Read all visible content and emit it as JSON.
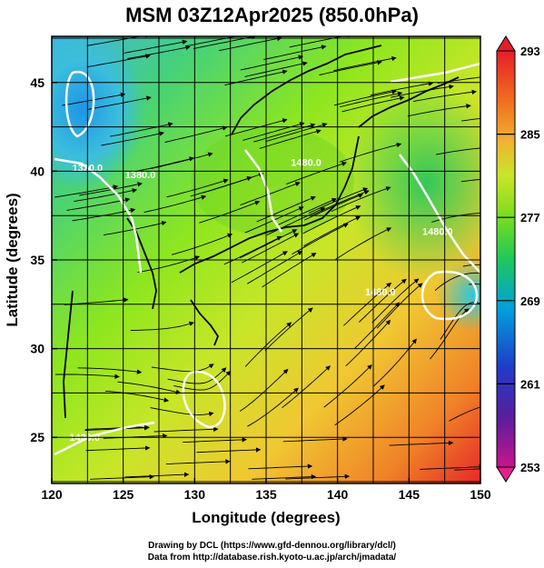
{
  "title": "MSM 03Z12Apr2025 (850.0hPa)",
  "x_axis": {
    "label": "Longitude (degrees)",
    "ticks": [
      "120",
      "125",
      "130",
      "135",
      "140",
      "145",
      "150"
    ],
    "values": [
      120,
      125,
      130,
      135,
      140,
      145,
      150
    ]
  },
  "y_axis": {
    "label": "Latitude  (degrees)",
    "ticks": [
      "25",
      "30",
      "35",
      "40",
      "45"
    ],
    "values": [
      25,
      30,
      35,
      40,
      45
    ]
  },
  "colorbar": {
    "labels": [
      "293",
      "285",
      "277",
      "269",
      "261",
      "253"
    ],
    "values": [
      293,
      285,
      277,
      269,
      261,
      253
    ],
    "min": 253,
    "max": 293,
    "colors": [
      "#c8148c",
      "#5a1e9e",
      "#1e3cc8",
      "#00a0dc",
      "#1ec85a",
      "#78dc1e",
      "#c8e628",
      "#f0b432",
      "#f06e1e",
      "#e61e28"
    ]
  },
  "contour_labels": [
    {
      "text": "1320.0",
      "lon": 122.5,
      "lat": 40.0
    },
    {
      "text": "1380.0",
      "lon": 126.2,
      "lat": 39.6
    },
    {
      "text": "1480.0",
      "lon": 137.8,
      "lat": 40.3
    },
    {
      "text": "1480.0",
      "lon": 147.0,
      "lat": 36.4
    },
    {
      "text": "1480.0",
      "lon": 143.0,
      "lat": 33.0
    },
    {
      "text": "1420.0",
      "lon": 122.3,
      "lat": 24.8
    }
  ],
  "credits": {
    "line1": "Drawing by DCL (https://www.gfd-dennou.org/library/dcl/)",
    "line2": "Data from http://database.rish.kyoto-u.ac.jp/arch/jmadata/"
  },
  "chart_data": {
    "type": "heatmap",
    "title": "MSM 03Z12Apr2025 (850.0hPa)",
    "xlabel": "Longitude (degrees)",
    "ylabel": "Latitude  (degrees)",
    "xlim": [
      120,
      150
    ],
    "ylim": [
      22.4,
      47.6
    ],
    "colorbar_range": [
      253,
      293
    ],
    "grid": true,
    "overlays": [
      "streamlines",
      "geopotential height contours",
      "coastlines"
    ]
  }
}
